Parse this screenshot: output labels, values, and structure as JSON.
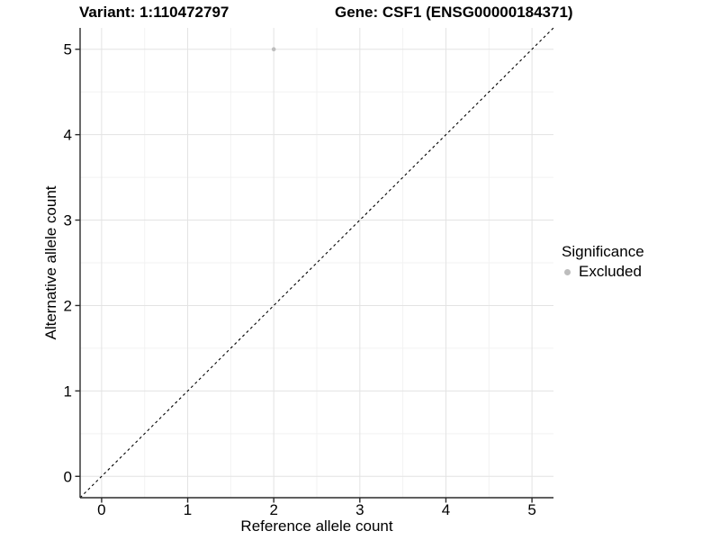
{
  "chart_data": {
    "type": "scatter",
    "titles": [
      "Variant: 1:110472797",
      "Gene: CSF1 (ENSG00000184371)"
    ],
    "xlabel": "Reference allele count",
    "ylabel": "Alternative allele count",
    "xlim": [
      -0.25,
      5.25
    ],
    "ylim": [
      -0.25,
      5.25
    ],
    "xticks": [
      "0",
      "1",
      "2",
      "3",
      "4",
      "5"
    ],
    "yticks": [
      "0",
      "1",
      "2",
      "3",
      "4",
      "5"
    ],
    "xtick_values": [
      0,
      1,
      2,
      3,
      4,
      5
    ],
    "ytick_values": [
      0,
      1,
      2,
      3,
      4,
      5
    ],
    "minor_x": [
      0.5,
      1.5,
      2.5,
      3.5,
      4.5
    ],
    "minor_y": [
      0.5,
      1.5,
      2.5,
      3.5,
      4.5
    ],
    "grid": "major+minor",
    "identity_line": {
      "style": "dashed",
      "from": [
        -0.25,
        -0.25
      ],
      "to": [
        5.25,
        5.25
      ]
    },
    "series": [
      {
        "name": "Excluded",
        "color": "#bdbdbd",
        "points": [
          {
            "x": 2,
            "y": 5
          }
        ]
      }
    ],
    "legend": {
      "title": "Significance",
      "position": "right",
      "items": [
        {
          "label": "Excluded",
          "color": "#bdbdbd"
        }
      ]
    }
  },
  "colors": {
    "background": "#ffffff",
    "major_grid": "#e3e3e3",
    "minor_grid": "#f2f2f2",
    "axis_line": "#2b2b2b",
    "tick_mark": "#2b2b2b",
    "tick_label": "#000000",
    "identity_line": "#000000",
    "point": "#bdbdbd"
  }
}
